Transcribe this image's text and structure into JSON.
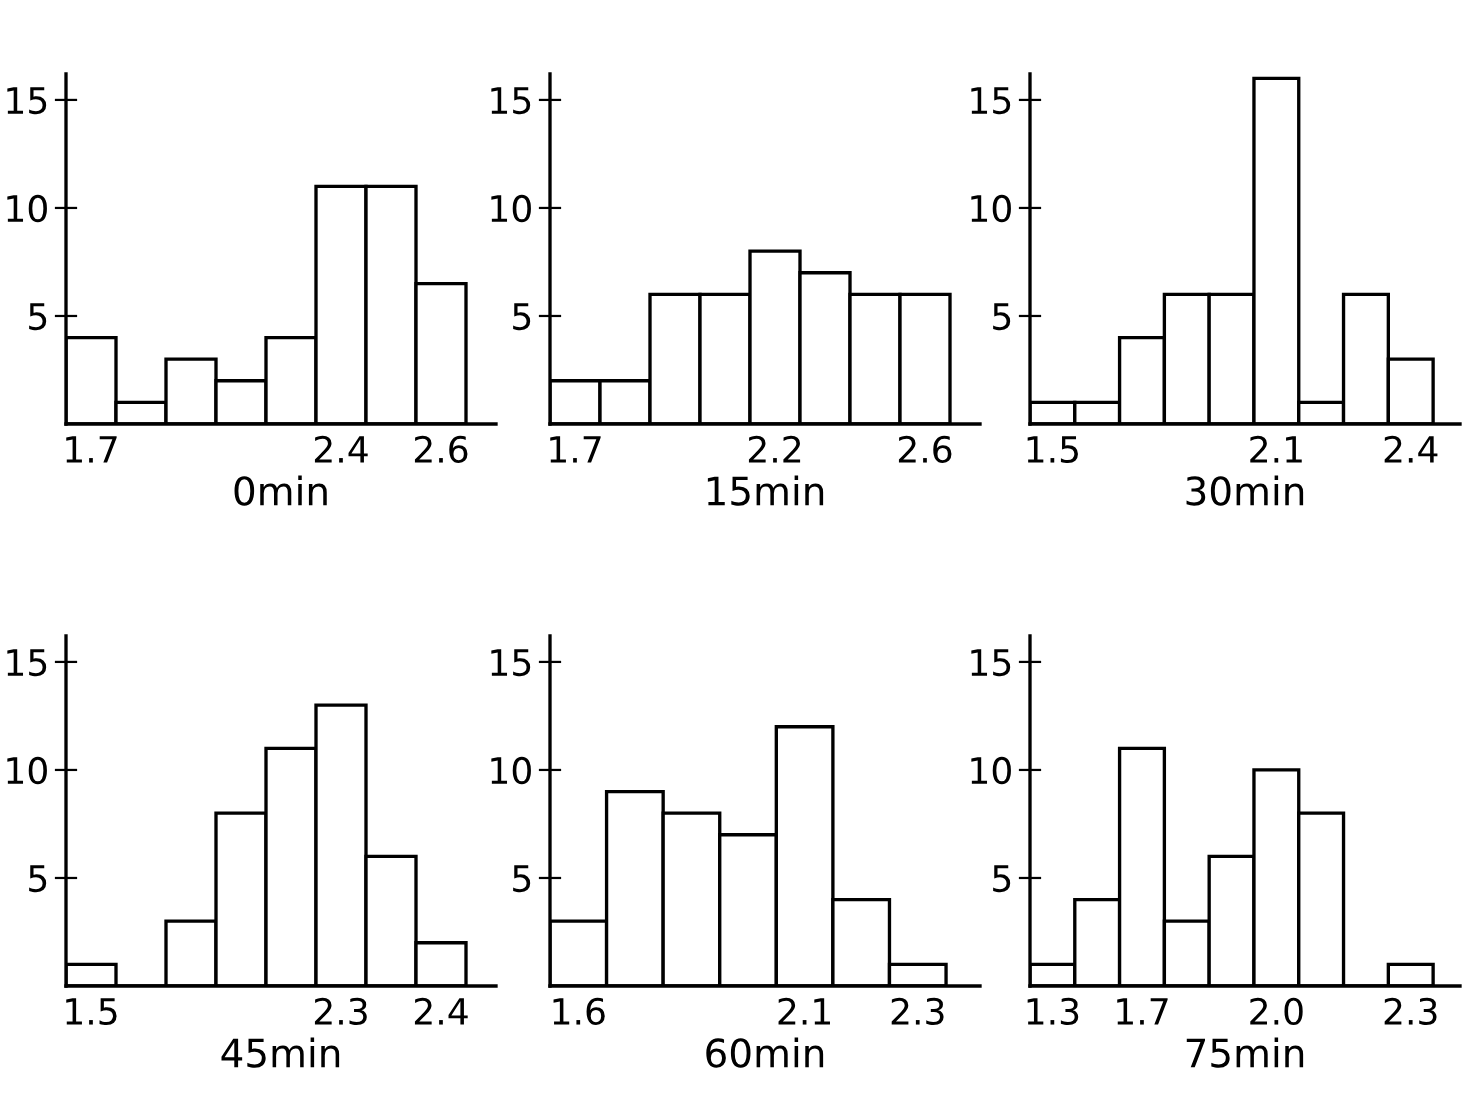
{
  "chart_data": [
    {
      "type": "bar",
      "xlabel": "0min",
      "categories": [
        "1.7",
        null,
        null,
        null,
        null,
        "2.4",
        null,
        "2.6"
      ],
      "values": [
        4,
        1,
        3,
        2,
        4,
        11,
        11,
        6.5
      ],
      "color": "#ffffff",
      "ylim": [
        0,
        16.2
      ],
      "yticks": [
        5,
        10,
        15
      ],
      "grid": false
    },
    {
      "type": "bar",
      "xlabel": "15min",
      "categories": [
        "1.7",
        null,
        null,
        null,
        "2.2",
        null,
        null,
        "2.6"
      ],
      "values": [
        2,
        2,
        6,
        6,
        8,
        7,
        6,
        6
      ],
      "color": "#ffffff",
      "ylim": [
        0,
        16.2
      ],
      "yticks": [
        5,
        10,
        15
      ],
      "grid": false
    },
    {
      "type": "bar",
      "xlabel": "30min",
      "categories": [
        "1.5",
        null,
        null,
        null,
        null,
        "2.1",
        null,
        null,
        "2.4"
      ],
      "values": [
        1,
        1,
        4,
        6,
        6,
        16,
        1,
        6,
        3
      ],
      "color": "#ffffff",
      "ylim": [
        0,
        16.2
      ],
      "yticks": [
        5,
        10,
        15
      ],
      "grid": false
    },
    {
      "type": "bar",
      "xlabel": "45min",
      "categories": [
        "1.5",
        null,
        null,
        null,
        null,
        "2.3",
        null,
        "2.4"
      ],
      "values": [
        1,
        0,
        3,
        8,
        11,
        13,
        6,
        2
      ],
      "color": "#ffffff",
      "ylim": [
        0,
        16.2
      ],
      "yticks": [
        5,
        10,
        15
      ],
      "grid": false
    },
    {
      "type": "bar",
      "xlabel": "60min",
      "categories": [
        "1.6",
        null,
        null,
        null,
        "2.1",
        null,
        "2.3"
      ],
      "values": [
        3,
        9,
        8,
        7,
        12,
        4,
        1
      ],
      "color": "#ffffff",
      "ylim": [
        0,
        16.2
      ],
      "yticks": [
        5,
        10,
        15
      ],
      "grid": false
    },
    {
      "type": "bar",
      "xlabel": "75min",
      "categories": [
        "1.3",
        null,
        "1.7",
        null,
        null,
        "2.0",
        null,
        null,
        "2.3"
      ],
      "values": [
        1,
        4,
        11,
        3,
        6,
        10,
        8,
        0,
        1
      ],
      "color": "#ffffff",
      "ylim": [
        0,
        16.2
      ],
      "yticks": [
        5,
        10,
        15
      ],
      "grid": false
    }
  ]
}
